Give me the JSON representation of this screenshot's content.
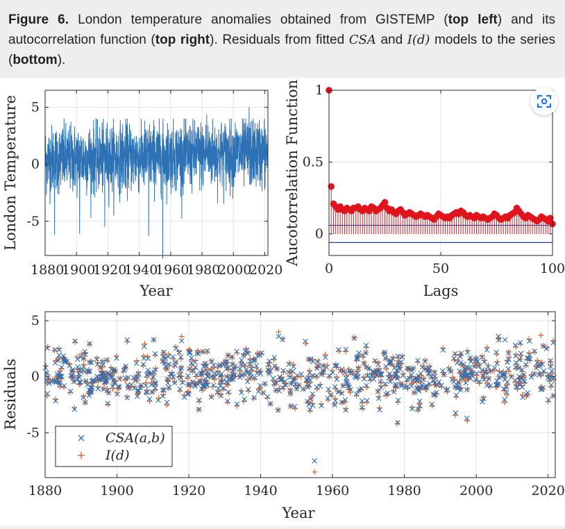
{
  "caption": {
    "fig_label": "Figure 6.",
    "t1": " London temperature anomalies obtained from GISTEMP (",
    "b1": "top left",
    "t2": ") and its autocorrelation function (",
    "b2": "top right",
    "t3": "). Residuals from fitted ",
    "m1": "CSA",
    "t4": " and ",
    "m2": "I(d)",
    "t5": " models to the series (",
    "b3": "bottom",
    "t6": ")."
  },
  "colors": {
    "blue": "#2e72b6",
    "red": "#e0141c",
    "stem": "#c2242c",
    "orange": "#d9541a",
    "cross": "#2b6fb5"
  },
  "icons": {
    "lens": "image-search-icon"
  },
  "chart_data": [
    {
      "type": "line",
      "ylabel": "London Temperature",
      "xlabel": "Year",
      "xlim": [
        1880,
        2022
      ],
      "ylim": [
        -8,
        6.5
      ],
      "xticks": [
        1880,
        1900,
        1920,
        1940,
        1960,
        1980,
        2000,
        2020
      ],
      "yticks": [
        -5,
        0,
        5
      ],
      "grid": true,
      "series": [
        {
          "values_note": "monthly anomalies",
          "range": [
            -8.3,
            5.2
          ],
          "extremes": [
            [
              1886,
              -6.2
            ],
            [
              1902,
              -6.1
            ],
            [
              1918,
              -5.5
            ],
            [
              1946,
              -6.3
            ],
            [
              1955,
              -8.3
            ],
            [
              2010,
              -5.3
            ],
            [
              1983,
              4.4
            ],
            [
              2010,
              5.0
            ]
          ]
        }
      ]
    },
    {
      "type": "scatter",
      "ylabel": "Aucotorrelation Function",
      "xlabel": "Lags",
      "xlim": [
        0,
        100
      ],
      "ylim": [
        -0.15,
        1.0
      ],
      "xticks": [
        0,
        50,
        100
      ],
      "yticks": [
        0,
        0.5,
        1
      ],
      "grid": true,
      "acf": [
        1.0,
        0.33,
        0.21,
        0.19,
        0.17,
        0.19,
        0.17,
        0.16,
        0.18,
        0.17,
        0.16,
        0.18,
        0.18,
        0.19,
        0.17,
        0.16,
        0.18,
        0.17,
        0.16,
        0.19,
        0.18,
        0.16,
        0.17,
        0.18,
        0.2,
        0.22,
        0.18,
        0.16,
        0.17,
        0.15,
        0.14,
        0.16,
        0.17,
        0.15,
        0.13,
        0.14,
        0.15,
        0.14,
        0.13,
        0.12,
        0.13,
        0.14,
        0.13,
        0.12,
        0.13,
        0.12,
        0.11,
        0.1,
        0.12,
        0.14,
        0.13,
        0.12,
        0.11,
        0.12,
        0.11,
        0.13,
        0.14,
        0.15,
        0.14,
        0.16,
        0.15,
        0.13,
        0.12,
        0.13,
        0.12,
        0.11,
        0.13,
        0.12,
        0.11,
        0.12,
        0.11,
        0.1,
        0.11,
        0.12,
        0.14,
        0.13,
        0.11,
        0.1,
        0.11,
        0.12,
        0.11,
        0.13,
        0.14,
        0.15,
        0.18,
        0.16,
        0.14,
        0.12,
        0.11,
        0.13,
        0.12,
        0.11,
        0.1,
        0.09,
        0.1,
        0.12,
        0.11,
        0.1,
        0.09,
        0.11,
        0.07
      ],
      "confidence_band": [
        0.06,
        -0.06
      ]
    },
    {
      "type": "scatter",
      "ylabel": "Residuals",
      "xlabel": "Year",
      "xlim": [
        1880,
        2022
      ],
      "ylim": [
        -9,
        5.8
      ],
      "xticks": [
        1880,
        1900,
        1920,
        1940,
        1960,
        1980,
        2000,
        2020
      ],
      "yticks": [
        -5,
        0,
        5
      ],
      "grid": true,
      "legend": {
        "placement": "bottom-left",
        "entries": [
          "CSA(a,b)",
          "I(d)"
        ]
      },
      "series": [
        {
          "name": "CSA(a,b)",
          "marker": "x",
          "range": [
            -7.5,
            3.7
          ]
        },
        {
          "name": "I(d)",
          "marker": "+",
          "range": [
            -8.5,
            4.0
          ]
        }
      ]
    }
  ]
}
